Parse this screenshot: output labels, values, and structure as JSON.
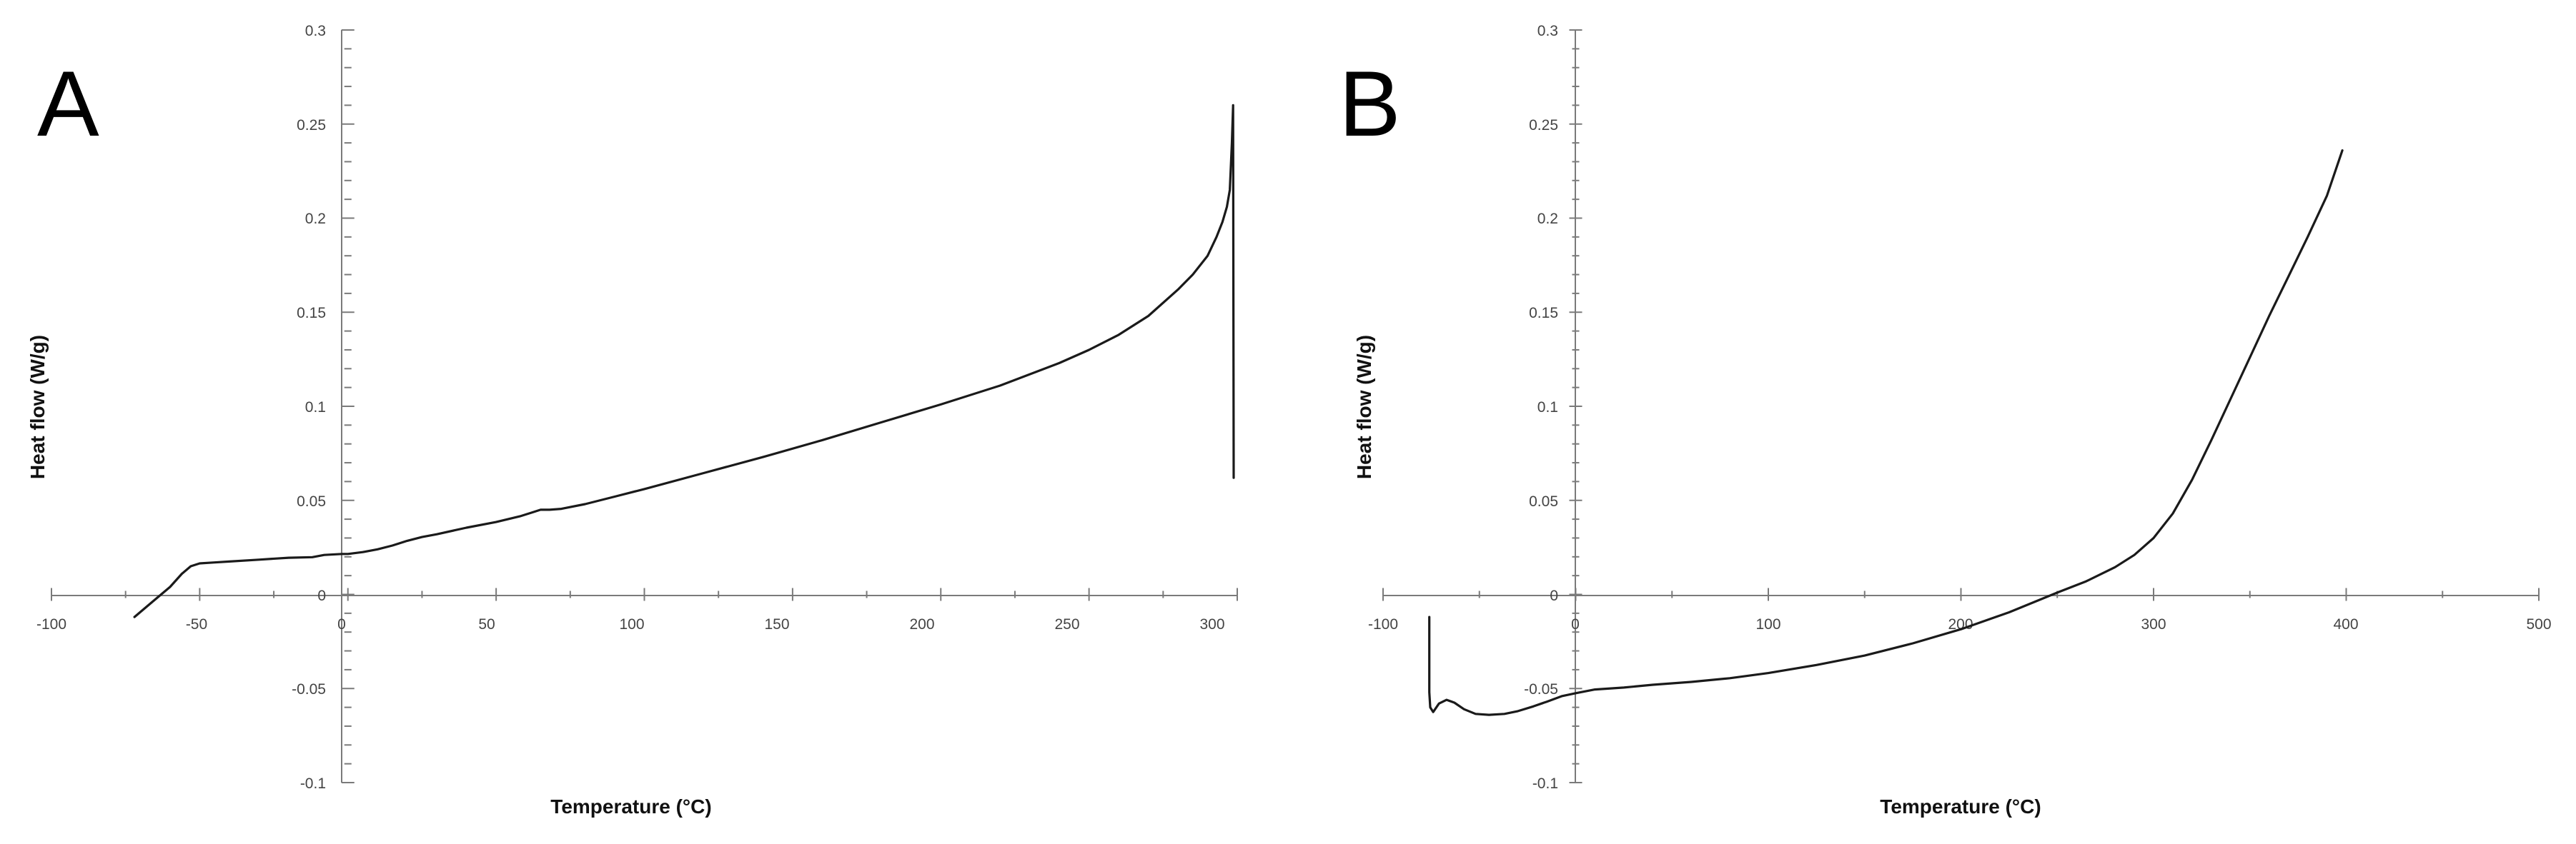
{
  "figure_panels": [
    {
      "panel_label": "A",
      "xlabel": "Temperature (°C)",
      "ylabel": "Heat flow (W/g)",
      "x_ticks": [
        "-100",
        "-50",
        "0",
        "50",
        "100",
        "150",
        "200",
        "250",
        "300"
      ],
      "y_ticks": [
        "-0.1",
        "-0.05",
        "0",
        "0.05",
        "0.1",
        "0.15",
        "0.2",
        "0.25",
        "0.3"
      ]
    },
    {
      "panel_label": "B",
      "xlabel": "Temperature (°C)",
      "ylabel": "Heat flow (W/g)",
      "x_ticks": [
        "-100",
        "0",
        "100",
        "200",
        "300",
        "400",
        "500"
      ],
      "y_ticks": [
        "-0.1",
        "-0.05",
        "0",
        "0.05",
        "0.1",
        "0.15",
        "0.2",
        "0.25",
        "0.3"
      ]
    }
  ],
  "chart_data": [
    {
      "type": "line",
      "title": "",
      "panel_label": "A",
      "xlabel": "Temperature (°C)",
      "ylabel": "Heat flow (W/g)",
      "xlim": [
        -100,
        300
      ],
      "ylim": [
        -0.1,
        0.3
      ],
      "x_tick_step": 50,
      "y_tick_step": 0.05,
      "grid": false,
      "series": [
        {
          "x": [
            -72,
            -66,
            -60,
            -56,
            -53,
            -50,
            -45,
            -40,
            -30,
            -20,
            -12,
            -8,
            -2,
            0,
            5,
            10,
            15,
            20,
            25,
            30,
            40,
            50,
            58,
            62,
            65,
            68,
            72,
            80,
            90,
            100,
            120,
            140,
            160,
            180,
            200,
            220,
            240,
            250,
            260,
            270,
            280,
            285,
            290,
            293,
            295,
            296.5,
            297.5,
            298.2,
            298.6,
            298.8
          ],
          "y": [
            -0.012,
            -0.004,
            0.004,
            0.011,
            0.015,
            0.0165,
            0.017,
            0.0175,
            0.0185,
            0.0195,
            0.0198,
            0.021,
            0.0215,
            0.0215,
            0.0225,
            0.024,
            0.026,
            0.0285,
            0.0305,
            0.032,
            0.0355,
            0.0385,
            0.0415,
            0.0435,
            0.045,
            0.045,
            0.0455,
            0.048,
            0.052,
            0.056,
            0.0645,
            0.073,
            0.082,
            0.0915,
            0.101,
            0.111,
            0.123,
            0.13,
            0.138,
            0.148,
            0.162,
            0.17,
            0.18,
            0.19,
            0.198,
            0.206,
            0.215,
            0.24,
            0.26,
            0.062
          ]
        }
      ]
    },
    {
      "type": "line",
      "title": "",
      "panel_label": "B",
      "xlabel": "Temperature (°C)",
      "ylabel": "Heat flow (W/g)",
      "xlim": [
        -100,
        500
      ],
      "ylim": [
        -0.1,
        0.3
      ],
      "x_tick_step": 100,
      "y_tick_step": 0.05,
      "grid": false,
      "series": [
        {
          "x": [
            -76,
            -76,
            -75.5,
            -74,
            -71,
            -67,
            -63,
            -58,
            -52,
            -45,
            -37,
            -30,
            -22,
            -15,
            -7,
            0,
            10,
            25,
            40,
            60,
            80,
            100,
            125,
            150,
            175,
            200,
            225,
            250,
            265,
            280,
            290,
            300,
            310,
            320,
            330,
            340,
            350,
            360,
            370,
            380,
            390,
            398
          ],
          "y": [
            -0.012,
            -0.052,
            -0.06,
            -0.0625,
            -0.058,
            -0.056,
            -0.0575,
            -0.061,
            -0.0635,
            -0.064,
            -0.0635,
            -0.062,
            -0.0595,
            -0.057,
            -0.054,
            -0.0525,
            -0.0505,
            -0.0495,
            -0.048,
            -0.0465,
            -0.0445,
            -0.0418,
            -0.0375,
            -0.0325,
            -0.026,
            -0.0185,
            -0.0095,
            0.001,
            0.007,
            0.0145,
            0.021,
            0.03,
            0.043,
            0.061,
            0.082,
            0.104,
            0.126,
            0.148,
            0.169,
            0.19,
            0.212,
            0.236
          ]
        }
      ]
    }
  ]
}
